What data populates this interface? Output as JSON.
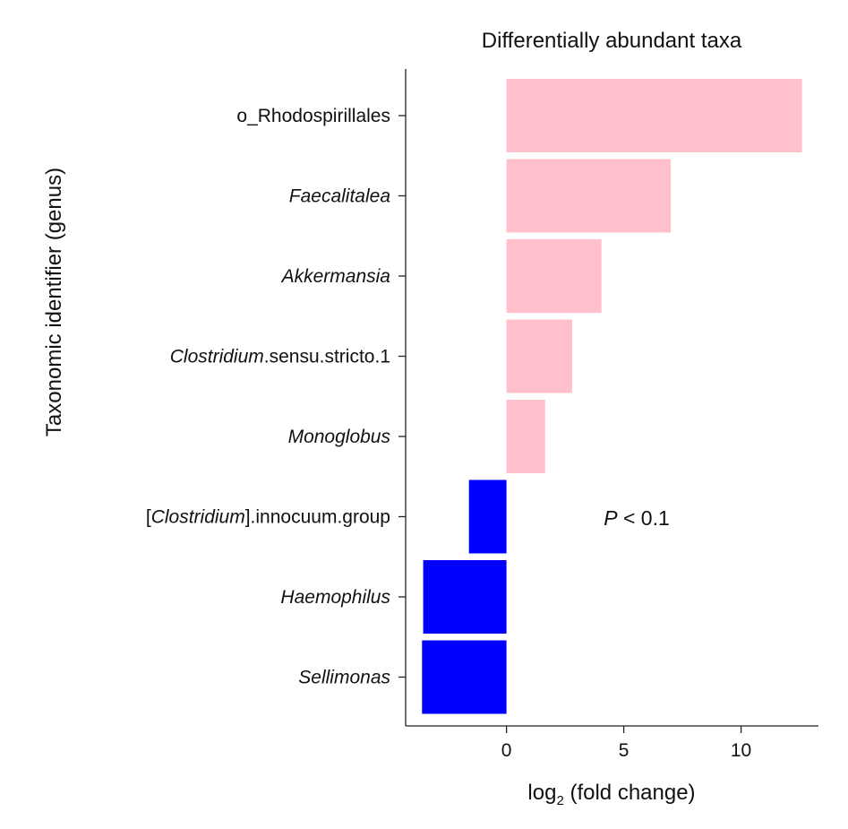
{
  "chart_data": {
    "type": "bar",
    "orientation": "horizontal",
    "title": "Differentially abundant taxa",
    "xlabel": {
      "prefix": "log",
      "subscript": "2",
      "suffix": " (fold change)"
    },
    "ylabel": "Taxonomic identifier (genus)",
    "xlim": [
      -4.3,
      13.3
    ],
    "xticks": [
      0,
      5,
      10
    ],
    "grid": false,
    "legend": "none",
    "categories": [
      {
        "parts": [
          {
            "text": "o_Rhodospirillales",
            "italic": false
          }
        ]
      },
      {
        "parts": [
          {
            "text": "Faecalitalea",
            "italic": true
          }
        ]
      },
      {
        "parts": [
          {
            "text": "Akkermansia",
            "italic": true
          }
        ]
      },
      {
        "parts": [
          {
            "text": "Clostridium",
            "italic": true
          },
          {
            "text": ".sensu.stricto.1",
            "italic": false
          }
        ]
      },
      {
        "parts": [
          {
            "text": "Monoglobus",
            "italic": true
          }
        ]
      },
      {
        "parts": [
          {
            "text": "[",
            "italic": false
          },
          {
            "text": "Clostridium",
            "italic": true
          },
          {
            "text": "].innocuum.group",
            "italic": false
          }
        ]
      },
      {
        "parts": [
          {
            "text": "Haemophilus",
            "italic": true
          }
        ]
      },
      {
        "parts": [
          {
            "text": "Sellimonas",
            "italic": true
          }
        ]
      }
    ],
    "values": [
      12.6,
      7.0,
      4.05,
      2.8,
      1.65,
      -1.6,
      -3.55,
      -3.6
    ],
    "colors": {
      "positive": "#ffc0cb",
      "negative": "#0000ff"
    },
    "annotation": {
      "italic_part": "P",
      "rest": " < 0.1"
    }
  }
}
